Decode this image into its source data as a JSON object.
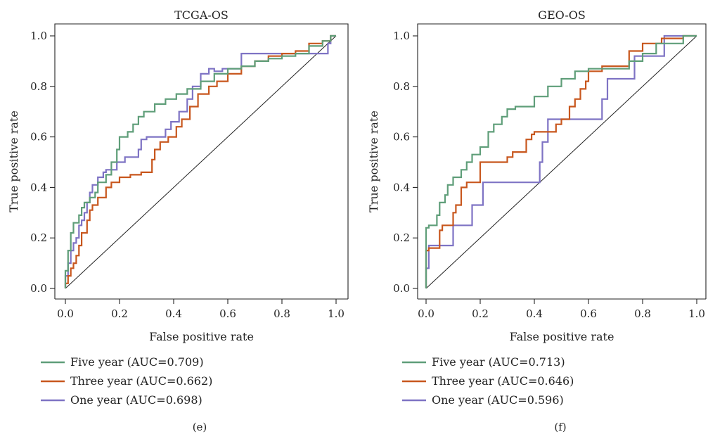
{
  "colors": {
    "five_year": "#5f9e79",
    "three_year": "#c8571e",
    "one_year": "#7e73c4"
  },
  "panels": [
    {
      "caption": "(e)"
    },
    {
      "caption": "(f)"
    }
  ],
  "chart_data": [
    {
      "type": "line",
      "title": "TCGA-OS",
      "xlabel": "False positive rate",
      "ylabel": "True positive rate",
      "xlim": [
        0,
        1
      ],
      "ylim": [
        0,
        1
      ],
      "xticks": [
        "0.0",
        "0.2",
        "0.4",
        "0.6",
        "0.8",
        "1.0"
      ],
      "yticks": [
        "0.0",
        "0.2",
        "0.4",
        "0.6",
        "0.8",
        "1.0"
      ],
      "grid": false,
      "legend_position": "below",
      "reference_line": [
        [
          0,
          0
        ],
        [
          1,
          1
        ]
      ],
      "series": [
        {
          "name": "Five year (AUC=0.709)",
          "color_key": "five_year",
          "points": [
            [
              0,
              0
            ],
            [
              0,
              0.06
            ],
            [
              0.01,
              0.07
            ],
            [
              0.01,
              0.12
            ],
            [
              0.02,
              0.15
            ],
            [
              0.02,
              0.2
            ],
            [
              0.03,
              0.22
            ],
            [
              0.03,
              0.25
            ],
            [
              0.05,
              0.26
            ],
            [
              0.06,
              0.29
            ],
            [
              0.07,
              0.32
            ],
            [
              0.09,
              0.34
            ],
            [
              0.11,
              0.36
            ],
            [
              0.12,
              0.38
            ],
            [
              0.15,
              0.42
            ],
            [
              0.17,
              0.45
            ],
            [
              0.19,
              0.5
            ],
            [
              0.2,
              0.55
            ],
            [
              0.23,
              0.6
            ],
            [
              0.25,
              0.62
            ],
            [
              0.27,
              0.65
            ],
            [
              0.29,
              0.68
            ],
            [
              0.33,
              0.7
            ],
            [
              0.37,
              0.73
            ],
            [
              0.41,
              0.75
            ],
            [
              0.45,
              0.77
            ],
            [
              0.5,
              0.79
            ],
            [
              0.55,
              0.82
            ],
            [
              0.6,
              0.85
            ],
            [
              0.65,
              0.87
            ],
            [
              0.7,
              0.88
            ],
            [
              0.75,
              0.9
            ],
            [
              0.8,
              0.91
            ],
            [
              0.85,
              0.92
            ],
            [
              0.9,
              0.93
            ],
            [
              0.95,
              0.96
            ],
            [
              0.98,
              0.98
            ],
            [
              1,
              1
            ]
          ]
        },
        {
          "name": "Three year (AUC=0.662)",
          "color_key": "three_year",
          "points": [
            [
              0,
              0
            ],
            [
              0.01,
              0.02
            ],
            [
              0.02,
              0.05
            ],
            [
              0.03,
              0.08
            ],
            [
              0.04,
              0.1
            ],
            [
              0.05,
              0.13
            ],
            [
              0.06,
              0.17
            ],
            [
              0.08,
              0.22
            ],
            [
              0.09,
              0.27
            ],
            [
              0.1,
              0.31
            ],
            [
              0.12,
              0.33
            ],
            [
              0.15,
              0.36
            ],
            [
              0.17,
              0.4
            ],
            [
              0.2,
              0.42
            ],
            [
              0.24,
              0.44
            ],
            [
              0.28,
              0.45
            ],
            [
              0.32,
              0.46
            ],
            [
              0.33,
              0.51
            ],
            [
              0.35,
              0.55
            ],
            [
              0.38,
              0.58
            ],
            [
              0.41,
              0.6
            ],
            [
              0.43,
              0.64
            ],
            [
              0.46,
              0.67
            ],
            [
              0.49,
              0.72
            ],
            [
              0.53,
              0.77
            ],
            [
              0.56,
              0.8
            ],
            [
              0.6,
              0.82
            ],
            [
              0.65,
              0.85
            ],
            [
              0.7,
              0.88
            ],
            [
              0.75,
              0.9
            ],
            [
              0.8,
              0.92
            ],
            [
              0.85,
              0.93
            ],
            [
              0.9,
              0.94
            ],
            [
              0.95,
              0.97
            ],
            [
              0.98,
              0.98
            ],
            [
              1,
              1
            ]
          ]
        },
        {
          "name": "One year (AUC=0.698)",
          "color_key": "one_year",
          "points": [
            [
              0,
              0
            ],
            [
              0.01,
              0.05
            ],
            [
              0.02,
              0.1
            ],
            [
              0.03,
              0.15
            ],
            [
              0.04,
              0.18
            ],
            [
              0.05,
              0.2
            ],
            [
              0.06,
              0.25
            ],
            [
              0.07,
              0.27
            ],
            [
              0.08,
              0.3
            ],
            [
              0.09,
              0.34
            ],
            [
              0.1,
              0.38
            ],
            [
              0.12,
              0.41
            ],
            [
              0.14,
              0.44
            ],
            [
              0.15,
              0.46
            ],
            [
              0.19,
              0.47
            ],
            [
              0.22,
              0.5
            ],
            [
              0.27,
              0.52
            ],
            [
              0.28,
              0.55
            ],
            [
              0.3,
              0.59
            ],
            [
              0.37,
              0.6
            ],
            [
              0.39,
              0.63
            ],
            [
              0.42,
              0.66
            ],
            [
              0.45,
              0.7
            ],
            [
              0.47,
              0.75
            ],
            [
              0.5,
              0.8
            ],
            [
              0.53,
              0.85
            ],
            [
              0.55,
              0.87
            ],
            [
              0.58,
              0.86
            ],
            [
              0.65,
              0.87
            ],
            [
              0.71,
              0.93
            ],
            [
              0.8,
              0.93
            ],
            [
              0.9,
              0.93
            ],
            [
              0.97,
              0.93
            ],
            [
              0.98,
              0.97
            ],
            [
              1,
              1
            ]
          ]
        }
      ]
    },
    {
      "type": "line",
      "title": "GEO-OS",
      "xlabel": "False positive rate",
      "ylabel": "True positive rate",
      "xlim": [
        0,
        1
      ],
      "ylim": [
        0,
        1
      ],
      "xticks": [
        "0.0",
        "0.2",
        "0.4",
        "0.6",
        "0.8",
        "1.0"
      ],
      "yticks": [
        "0.0",
        "0.2",
        "0.4",
        "0.6",
        "0.8",
        "1.0"
      ],
      "grid": false,
      "legend_position": "below",
      "reference_line": [
        [
          0,
          0
        ],
        [
          1,
          1
        ]
      ],
      "series": [
        {
          "name": "Five year (AUC=0.713)",
          "color_key": "five_year",
          "points": [
            [
              0,
              0
            ],
            [
              0,
              0.2
            ],
            [
              0.01,
              0.24
            ],
            [
              0.04,
              0.25
            ],
            [
              0.05,
              0.29
            ],
            [
              0.07,
              0.34
            ],
            [
              0.08,
              0.37
            ],
            [
              0.1,
              0.41
            ],
            [
              0.13,
              0.44
            ],
            [
              0.15,
              0.47
            ],
            [
              0.17,
              0.5
            ],
            [
              0.2,
              0.53
            ],
            [
              0.23,
              0.56
            ],
            [
              0.25,
              0.62
            ],
            [
              0.28,
              0.65
            ],
            [
              0.3,
              0.68
            ],
            [
              0.33,
              0.71
            ],
            [
              0.4,
              0.72
            ],
            [
              0.45,
              0.76
            ],
            [
              0.5,
              0.8
            ],
            [
              0.55,
              0.83
            ],
            [
              0.6,
              0.86
            ],
            [
              0.7,
              0.87
            ],
            [
              0.75,
              0.87
            ],
            [
              0.8,
              0.9
            ],
            [
              0.85,
              0.93
            ],
            [
              0.87,
              0.97
            ],
            [
              0.95,
              0.97
            ],
            [
              1,
              1
            ]
          ]
        },
        {
          "name": "Three year (AUC=0.646)",
          "color_key": "three_year",
          "points": [
            [
              0,
              0
            ],
            [
              0,
              0.1
            ],
            [
              0.01,
              0.15
            ],
            [
              0.05,
              0.16
            ],
            [
              0.06,
              0.23
            ],
            [
              0.1,
              0.25
            ],
            [
              0.11,
              0.3
            ],
            [
              0.13,
              0.33
            ],
            [
              0.15,
              0.4
            ],
            [
              0.2,
              0.42
            ],
            [
              0.22,
              0.5
            ],
            [
              0.3,
              0.5
            ],
            [
              0.32,
              0.52
            ],
            [
              0.37,
              0.54
            ],
            [
              0.39,
              0.59
            ],
            [
              0.4,
              0.61
            ],
            [
              0.48,
              0.62
            ],
            [
              0.5,
              0.65
            ],
            [
              0.53,
              0.67
            ],
            [
              0.55,
              0.72
            ],
            [
              0.57,
              0.75
            ],
            [
              0.59,
              0.79
            ],
            [
              0.6,
              0.82
            ],
            [
              0.65,
              0.86
            ],
            [
              0.75,
              0.88
            ],
            [
              0.8,
              0.94
            ],
            [
              0.87,
              0.97
            ],
            [
              0.95,
              0.99
            ],
            [
              1,
              1
            ]
          ]
        },
        {
          "name": "One year (AUC=0.596)",
          "color_key": "one_year",
          "points": [
            [
              0,
              0
            ],
            [
              0,
              0.08
            ],
            [
              0.01,
              0.08
            ],
            [
              0.02,
              0.17
            ],
            [
              0.1,
              0.17
            ],
            [
              0.11,
              0.25
            ],
            [
              0.17,
              0.25
            ],
            [
              0.18,
              0.33
            ],
            [
              0.21,
              0.33
            ],
            [
              0.22,
              0.42
            ],
            [
              0.42,
              0.42
            ],
            [
              0.43,
              0.5
            ],
            [
              0.45,
              0.58
            ],
            [
              0.47,
              0.67
            ],
            [
              0.65,
              0.67
            ],
            [
              0.67,
              0.75
            ],
            [
              0.68,
              0.83
            ],
            [
              0.77,
              0.83
            ],
            [
              0.78,
              0.92
            ],
            [
              0.88,
              0.92
            ],
            [
              0.89,
              1
            ],
            [
              1,
              1
            ]
          ]
        }
      ]
    }
  ]
}
